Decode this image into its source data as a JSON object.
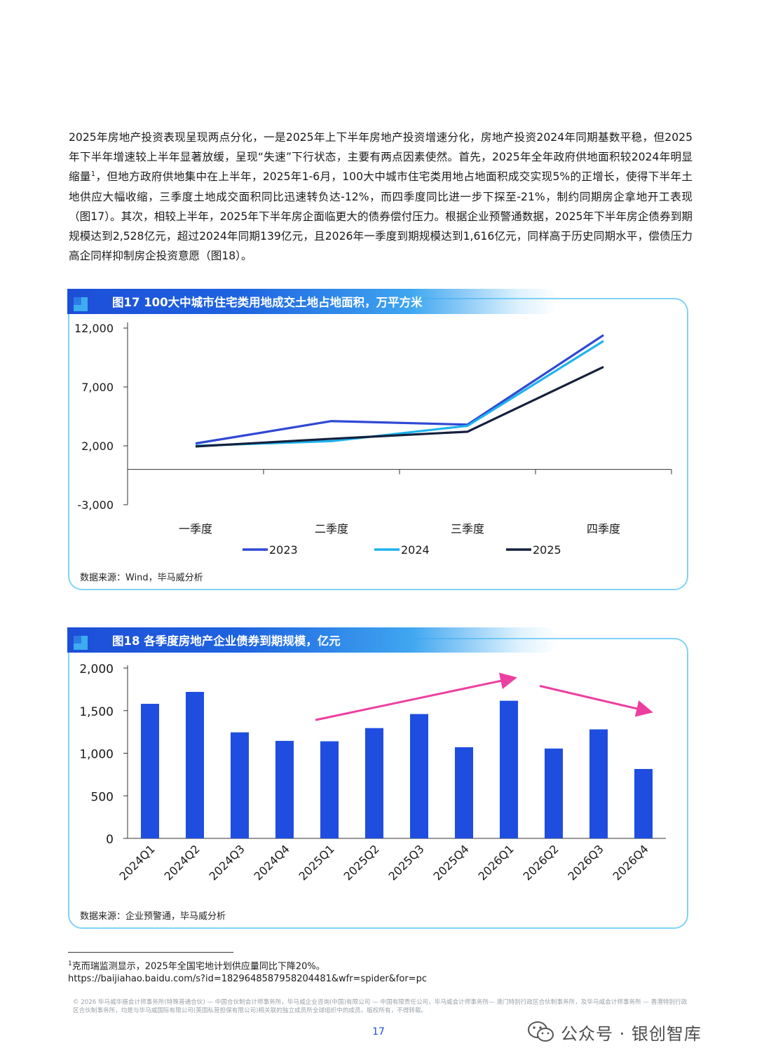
{
  "body_text": {
    "before_sup": "2025年房地产投资表现呈现两点分化，一是2025年上下半年房地产投资增速分化，房地产投资2024年同期基数平稳，但2025年下半年增速较上半年显著放缓，呈现“失速”下行状态，主要有两点因素使然。首先，2025年全年政府供地面积较2024年明显缩量",
    "sup": "1",
    "after_sup": "，但地方政府供地集中在上半年，2025年1-6月，100大中城市住宅类用地占地面积成交实现5%的正增长，使得下半年土地供应大幅收缩，三季度土地成交面积同比迅速转负达-12%，而四季度同比进一步下探至-21%，制约同期房企拿地开工表现（图17）。其次，相较上半年，2025年下半年房企面临更大的债券偿付压力。根据企业预警通数据，2025年下半年房企债券到期规模达到2,528亿元，超过2024年同期139亿元，且2026年一季度到期规模达到1,616亿元，同样高于历史同期水平，偿债压力高企同样抑制房企投资意愿（图18）。"
  },
  "figure17": {
    "title": "图17 100大中城市住宅类用地成交土地占地面积，万平方米",
    "source": "数据来源：Wind，毕马威分析"
  },
  "figure18": {
    "title": "图18 各季度房地产企业债券到期规模，亿元",
    "source": "数据来源：企业预警通，毕马威分析"
  },
  "chart_data": [
    {
      "type": "line",
      "categories": [
        "一季度",
        "二季度",
        "三季度",
        "四季度"
      ],
      "series": [
        {
          "name": "2023",
          "color": "#2f48d4",
          "values": [
            2200,
            4100,
            3800,
            11400
          ]
        },
        {
          "name": "2024",
          "color": "#1fb3ec",
          "values": [
            2000,
            2400,
            3700,
            10900
          ]
        },
        {
          "name": "2025",
          "color": "#14213d",
          "values": [
            1950,
            2600,
            3200,
            8700
          ]
        }
      ],
      "yticks": [
        "12,000",
        "7,000",
        "2,000",
        "-3,000"
      ],
      "ylim": [
        -3000,
        12000
      ],
      "legend": "bottom"
    },
    {
      "type": "bar",
      "categories": [
        "2024Q1",
        "2024Q2",
        "2024Q3",
        "2024Q4",
        "2025Q1",
        "2025Q2",
        "2025Q3",
        "2025Q4",
        "2026Q1",
        "2026Q2",
        "2026Q3",
        "2026Q4"
      ],
      "values": [
        1580,
        1720,
        1245,
        1145,
        1140,
        1295,
        1460,
        1070,
        1616,
        1055,
        1280,
        815
      ],
      "bar_color": "#1f4de0",
      "yticks": [
        "2,000",
        "1,500",
        "1,000",
        "500",
        "0"
      ],
      "ylim": [
        0,
        2000
      ],
      "annotations": [
        {
          "type": "arrow",
          "color": "#ec3fa0",
          "from_category": "2025Q1",
          "from_value": 1390,
          "to_category": "2026Q1",
          "to_value": 1880
        },
        {
          "type": "arrow",
          "color": "#ec3fa0",
          "from_category": "2026Q2",
          "from_value": 1790,
          "to_category": "2026Q4",
          "to_value": 1490
        }
      ]
    }
  ],
  "footnote": {
    "num": "1",
    "text": "克而瑞监测显示，2025年全国宅地计划供应量同比下降20%。",
    "url": "https://baijiahao.baidu.com/s?id=1829648587958204481&wfr=spider&for=pc"
  },
  "copyright": "© 2026 毕马威华振会计师事务所(特殊普通合伙) — 中国合伙制会计师事务所，毕马威企业咨询(中国)有限公司 — 中国有限责任公司，毕马威会计师事务所— 澳门特别行政区合伙制事务所，及毕马威会计师事务所 — 香港特别行政区合伙制事务所，均是与毕马威国际有限公司(英国私营担保有限公司)相关联的独立成员所全球组织中的成员。版权所有，不得转载。",
  "page_number": "17",
  "watermark": "公众号 · 银创智库",
  "icons": {
    "wechat": "wechat-logo-icon"
  }
}
